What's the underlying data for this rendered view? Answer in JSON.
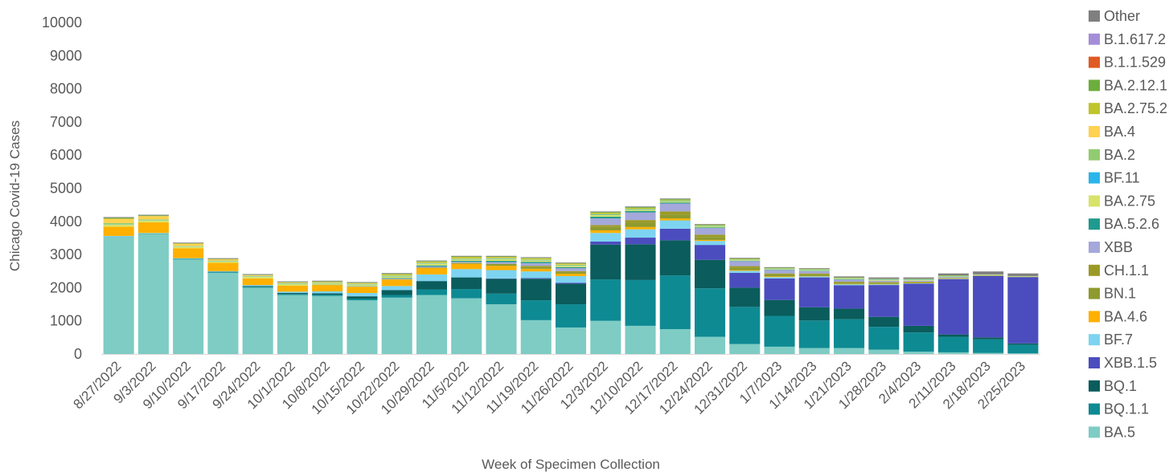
{
  "chart_data": {
    "type": "bar",
    "stacked": true,
    "title": "",
    "xlabel": "Week of Specimen Collection",
    "ylabel": "Chicago Covid-19 Cases",
    "ylim": [
      0,
      10000
    ],
    "yticks": [
      0,
      1000,
      2000,
      3000,
      4000,
      5000,
      6000,
      7000,
      8000,
      9000,
      10000
    ],
    "grid": false,
    "legend_position": "right",
    "categories": [
      "8/27/2022",
      "9/3/2022",
      "9/10/2022",
      "9/17/2022",
      "9/24/2022",
      "10/1/2022",
      "10/8/2022",
      "10/15/2022",
      "10/22/2022",
      "10/29/2022",
      "11/5/2022",
      "11/12/2022",
      "11/19/2022",
      "11/26/2022",
      "12/3/2022",
      "12/10/2022",
      "12/17/2022",
      "12/24/2022",
      "12/31/2022",
      "1/7/2023",
      "1/14/2023",
      "1/21/2023",
      "1/28/2023",
      "2/4/2023",
      "2/11/2023",
      "2/18/2023",
      "2/25/2023"
    ],
    "series": [
      {
        "name": "BA.5",
        "color": "#7ECCC4",
        "values": [
          3520,
          3620,
          2850,
          2450,
          2000,
          1780,
          1750,
          1620,
          1700,
          1780,
          1680,
          1500,
          1020,
          800,
          1000,
          850,
          750,
          520,
          300,
          220,
          180,
          180,
          130,
          70,
          50,
          30,
          20
        ]
      },
      {
        "name": "BQ.1.1",
        "color": "#0E8A93",
        "values": [
          10,
          10,
          20,
          20,
          30,
          30,
          40,
          50,
          80,
          170,
          280,
          320,
          600,
          700,
          1250,
          1380,
          1620,
          1460,
          1120,
          930,
          830,
          870,
          690,
          580,
          470,
          410,
          260
        ]
      },
      {
        "name": "BQ.1",
        "color": "#0B5C5C",
        "values": [
          0,
          0,
          0,
          10,
          20,
          30,
          40,
          70,
          150,
          250,
          350,
          450,
          650,
          620,
          1050,
          1080,
          1060,
          860,
          580,
          480,
          400,
          320,
          300,
          200,
          70,
          60,
          40
        ]
      },
      {
        "name": "XBB.1.5",
        "color": "#4B4DBE",
        "values": [
          0,
          0,
          0,
          0,
          0,
          0,
          0,
          0,
          0,
          0,
          0,
          10,
          20,
          30,
          90,
          200,
          350,
          450,
          450,
          650,
          900,
          700,
          960,
          1270,
          1670,
          1850,
          2000
        ]
      },
      {
        "name": "BF.7",
        "color": "#7DD4F0",
        "values": [
          30,
          20,
          20,
          20,
          30,
          40,
          60,
          100,
          120,
          200,
          250,
          250,
          200,
          200,
          260,
          250,
          250,
          120,
          60,
          40,
          30,
          30,
          20,
          10,
          10,
          0,
          0
        ]
      },
      {
        "name": "BA.4.6",
        "color": "#FFB000",
        "values": [
          280,
          320,
          300,
          250,
          200,
          180,
          190,
          190,
          200,
          190,
          160,
          130,
          80,
          70,
          80,
          70,
          60,
          30,
          20,
          20,
          10,
          10,
          10,
          10,
          10,
          0,
          0
        ]
      },
      {
        "name": "BN.1",
        "color": "#8E9A2E",
        "values": [
          0,
          0,
          0,
          0,
          0,
          0,
          0,
          0,
          0,
          20,
          20,
          40,
          50,
          40,
          100,
          130,
          120,
          90,
          70,
          60,
          50,
          40,
          40,
          20,
          10,
          10,
          10
        ]
      },
      {
        "name": "CH.1.1",
        "color": "#9C9A26",
        "values": [
          0,
          0,
          0,
          0,
          0,
          0,
          0,
          0,
          0,
          0,
          10,
          20,
          40,
          40,
          60,
          80,
          90,
          70,
          50,
          30,
          30,
          30,
          20,
          20,
          10,
          10,
          0
        ]
      },
      {
        "name": "XBB",
        "color": "#A4A8DA",
        "values": [
          0,
          0,
          0,
          0,
          0,
          0,
          0,
          10,
          20,
          30,
          30,
          50,
          80,
          90,
          200,
          230,
          240,
          200,
          150,
          100,
          70,
          60,
          40,
          30,
          20,
          10,
          0
        ]
      },
      {
        "name": "BA.5.2.6",
        "color": "#1F9A8E",
        "values": [
          0,
          0,
          0,
          0,
          0,
          0,
          10,
          10,
          20,
          30,
          30,
          40,
          40,
          30,
          50,
          40,
          30,
          20,
          10,
          10,
          10,
          10,
          0,
          0,
          0,
          0,
          0
        ]
      },
      {
        "name": "BA.2.75",
        "color": "#D8E36A",
        "values": [
          70,
          60,
          50,
          50,
          50,
          50,
          40,
          40,
          50,
          50,
          40,
          50,
          40,
          40,
          50,
          40,
          30,
          30,
          20,
          20,
          20,
          20,
          20,
          20,
          10,
          10,
          10
        ]
      },
      {
        "name": "BF.11",
        "color": "#2CB5EA",
        "values": [
          10,
          10,
          10,
          10,
          10,
          10,
          10,
          10,
          10,
          10,
          10,
          10,
          10,
          10,
          10,
          10,
          10,
          10,
          10,
          10,
          10,
          10,
          10,
          10,
          10,
          0,
          0
        ]
      },
      {
        "name": "BA.2",
        "color": "#92CC70",
        "values": [
          30,
          20,
          10,
          10,
          10,
          10,
          10,
          10,
          20,
          20,
          20,
          20,
          20,
          20,
          20,
          20,
          20,
          10,
          10,
          10,
          10,
          10,
          10,
          10,
          10,
          10,
          10
        ]
      },
      {
        "name": "BA.4",
        "color": "#FFD24F",
        "values": [
          130,
          100,
          70,
          40,
          20,
          20,
          20,
          10,
          10,
          10,
          10,
          10,
          10,
          10,
          0,
          0,
          0,
          0,
          0,
          0,
          0,
          0,
          0,
          0,
          0,
          0,
          0
        ]
      },
      {
        "name": "BA.2.75.2",
        "color": "#BFC52B",
        "values": [
          0,
          0,
          0,
          0,
          10,
          10,
          10,
          20,
          30,
          30,
          40,
          30,
          30,
          30,
          40,
          30,
          20,
          20,
          20,
          10,
          10,
          10,
          10,
          10,
          10,
          0,
          0
        ]
      },
      {
        "name": "BA.2.12.1",
        "color": "#6BAE3C",
        "values": [
          30,
          20,
          10,
          10,
          10,
          10,
          10,
          10,
          10,
          10,
          10,
          10,
          10,
          10,
          20,
          20,
          20,
          10,
          10,
          10,
          10,
          10,
          10,
          10,
          10,
          0,
          0
        ]
      },
      {
        "name": "B.1.1.529",
        "color": "#E05A24",
        "values": [
          0,
          0,
          0,
          0,
          0,
          0,
          0,
          0,
          0,
          0,
          0,
          0,
          0,
          0,
          0,
          0,
          0,
          0,
          0,
          0,
          0,
          0,
          0,
          0,
          0,
          0,
          0
        ]
      },
      {
        "name": "B.1.617.2",
        "color": "#A48ED8",
        "values": [
          0,
          0,
          0,
          0,
          0,
          0,
          0,
          0,
          0,
          0,
          0,
          0,
          0,
          0,
          0,
          0,
          0,
          0,
          0,
          0,
          0,
          0,
          0,
          0,
          0,
          0,
          0
        ]
      },
      {
        "name": "Other",
        "color": "#7F7F7F",
        "values": [
          20,
          20,
          20,
          20,
          20,
          20,
          20,
          20,
          20,
          20,
          20,
          20,
          20,
          20,
          20,
          20,
          20,
          20,
          20,
          20,
          20,
          30,
          40,
          40,
          60,
          90,
          80
        ]
      }
    ]
  }
}
